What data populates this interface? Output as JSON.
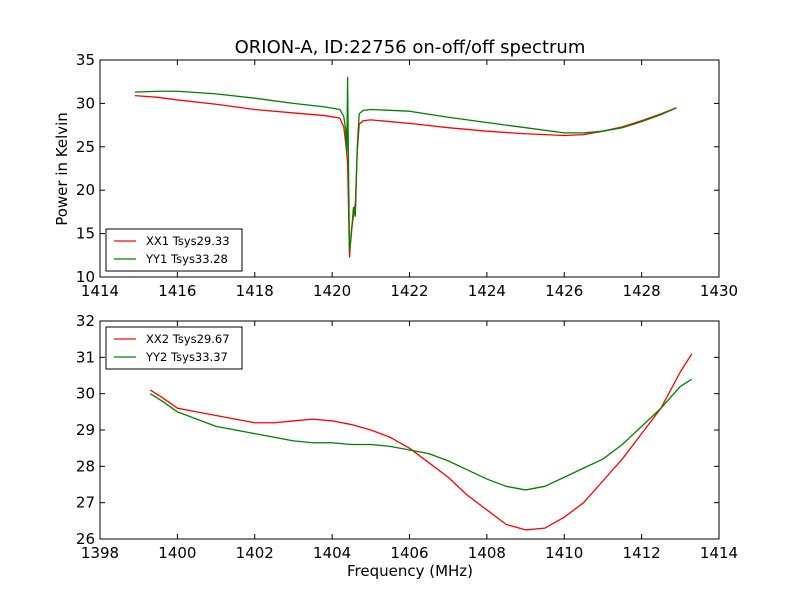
{
  "chart_data": [
    {
      "type": "line",
      "title": "ORION-A, ID:22756 on-off/off spectrum",
      "xlabel": "",
      "ylabel": "Power in Kelvin",
      "xlim": [
        1414,
        1430
      ],
      "ylim": [
        10,
        35
      ],
      "xticks": [
        "1414",
        "1416",
        "1418",
        "1420",
        "1422",
        "1424",
        "1426",
        "1428",
        "1430"
      ],
      "yticks": [
        "10",
        "15",
        "20",
        "25",
        "30",
        "35"
      ],
      "legend_position": "lower-left",
      "series": [
        {
          "name": "XX1 Tsys29.33",
          "color": "#ff0000",
          "points": [
            [
              1414.9,
              30.9
            ],
            [
              1415.5,
              30.7
            ],
            [
              1416.0,
              30.4
            ],
            [
              1417.0,
              29.9
            ],
            [
              1418.0,
              29.3
            ],
            [
              1419.0,
              28.9
            ],
            [
              1419.8,
              28.6
            ],
            [
              1420.2,
              28.3
            ],
            [
              1420.3,
              27.3
            ],
            [
              1420.35,
              25.5
            ],
            [
              1420.4,
              23.2
            ],
            [
              1420.45,
              12.3
            ],
            [
              1420.5,
              15.5
            ],
            [
              1420.55,
              17.0
            ],
            [
              1420.6,
              18.5
            ],
            [
              1420.65,
              24.5
            ],
            [
              1420.7,
              27.6
            ],
            [
              1420.8,
              28.0
            ],
            [
              1421.0,
              28.1
            ],
            [
              1422.0,
              27.7
            ],
            [
              1423.0,
              27.2
            ],
            [
              1424.0,
              26.8
            ],
            [
              1425.0,
              26.5
            ],
            [
              1426.0,
              26.3
            ],
            [
              1426.5,
              26.4
            ],
            [
              1427.0,
              26.8
            ],
            [
              1427.5,
              27.3
            ],
            [
              1428.0,
              28.0
            ],
            [
              1428.5,
              28.8
            ],
            [
              1428.9,
              29.5
            ]
          ]
        },
        {
          "name": "YY1 Tsys33.28",
          "color": "#008000",
          "points": [
            [
              1414.9,
              31.3
            ],
            [
              1415.5,
              31.4
            ],
            [
              1416.0,
              31.4
            ],
            [
              1417.0,
              31.1
            ],
            [
              1418.0,
              30.6
            ],
            [
              1419.0,
              30.0
            ],
            [
              1419.8,
              29.6
            ],
            [
              1420.2,
              29.3
            ],
            [
              1420.3,
              28.5
            ],
            [
              1420.35,
              27.0
            ],
            [
              1420.38,
              24.5
            ],
            [
              1420.4,
              33.0
            ],
            [
              1420.42,
              24.0
            ],
            [
              1420.45,
              13.0
            ],
            [
              1420.5,
              15.0
            ],
            [
              1420.55,
              18.0
            ],
            [
              1420.6,
              17.0
            ],
            [
              1420.65,
              25.0
            ],
            [
              1420.7,
              28.8
            ],
            [
              1420.8,
              29.2
            ],
            [
              1421.0,
              29.3
            ],
            [
              1422.0,
              29.1
            ],
            [
              1423.0,
              28.4
            ],
            [
              1424.0,
              27.8
            ],
            [
              1425.0,
              27.2
            ],
            [
              1426.0,
              26.6
            ],
            [
              1426.5,
              26.6
            ],
            [
              1427.0,
              26.8
            ],
            [
              1427.5,
              27.2
            ],
            [
              1428.0,
              27.9
            ],
            [
              1428.5,
              28.7
            ],
            [
              1428.9,
              29.5
            ]
          ]
        }
      ]
    },
    {
      "type": "line",
      "title": "",
      "xlabel": "Frequency (MHz)",
      "ylabel": "",
      "xlim": [
        1398,
        1414
      ],
      "ylim": [
        26,
        32
      ],
      "xticks": [
        "1398",
        "1400",
        "1402",
        "1404",
        "1406",
        "1408",
        "1410",
        "1412",
        "1414"
      ],
      "yticks": [
        "26",
        "27",
        "28",
        "29",
        "30",
        "31",
        "32"
      ],
      "legend_position": "upper-left",
      "series": [
        {
          "name": "XX2 Tsys29.67",
          "color": "#ff0000",
          "points": [
            [
              1399.3,
              30.1
            ],
            [
              1399.6,
              29.9
            ],
            [
              1400.0,
              29.6
            ],
            [
              1400.5,
              29.5
            ],
            [
              1401.0,
              29.4
            ],
            [
              1401.5,
              29.3
            ],
            [
              1402.0,
              29.2
            ],
            [
              1402.5,
              29.2
            ],
            [
              1403.0,
              29.25
            ],
            [
              1403.5,
              29.3
            ],
            [
              1404.0,
              29.25
            ],
            [
              1404.5,
              29.15
            ],
            [
              1405.0,
              29.0
            ],
            [
              1405.5,
              28.8
            ],
            [
              1406.0,
              28.5
            ],
            [
              1406.5,
              28.1
            ],
            [
              1407.0,
              27.7
            ],
            [
              1407.5,
              27.2
            ],
            [
              1408.0,
              26.8
            ],
            [
              1408.5,
              26.4
            ],
            [
              1409.0,
              26.25
            ],
            [
              1409.5,
              26.3
            ],
            [
              1410.0,
              26.6
            ],
            [
              1410.5,
              27.0
            ],
            [
              1411.0,
              27.6
            ],
            [
              1411.5,
              28.2
            ],
            [
              1412.0,
              28.9
            ],
            [
              1412.5,
              29.6
            ],
            [
              1413.0,
              30.6
            ],
            [
              1413.3,
              31.1
            ]
          ]
        },
        {
          "name": "YY2 Tsys33.37",
          "color": "#008000",
          "points": [
            [
              1399.3,
              30.0
            ],
            [
              1399.6,
              29.8
            ],
            [
              1400.0,
              29.5
            ],
            [
              1400.5,
              29.3
            ],
            [
              1401.0,
              29.1
            ],
            [
              1401.5,
              29.0
            ],
            [
              1402.0,
              28.9
            ],
            [
              1402.5,
              28.8
            ],
            [
              1403.0,
              28.7
            ],
            [
              1403.5,
              28.65
            ],
            [
              1404.0,
              28.65
            ],
            [
              1404.5,
              28.6
            ],
            [
              1405.0,
              28.6
            ],
            [
              1405.5,
              28.55
            ],
            [
              1406.0,
              28.45
            ],
            [
              1406.5,
              28.35
            ],
            [
              1407.0,
              28.15
            ],
            [
              1407.5,
              27.9
            ],
            [
              1408.0,
              27.65
            ],
            [
              1408.5,
              27.45
            ],
            [
              1409.0,
              27.35
            ],
            [
              1409.5,
              27.45
            ],
            [
              1410.0,
              27.7
            ],
            [
              1410.5,
              27.95
            ],
            [
              1411.0,
              28.2
            ],
            [
              1411.5,
              28.6
            ],
            [
              1412.0,
              29.1
            ],
            [
              1412.5,
              29.6
            ],
            [
              1413.0,
              30.2
            ],
            [
              1413.3,
              30.4
            ]
          ]
        }
      ]
    }
  ]
}
